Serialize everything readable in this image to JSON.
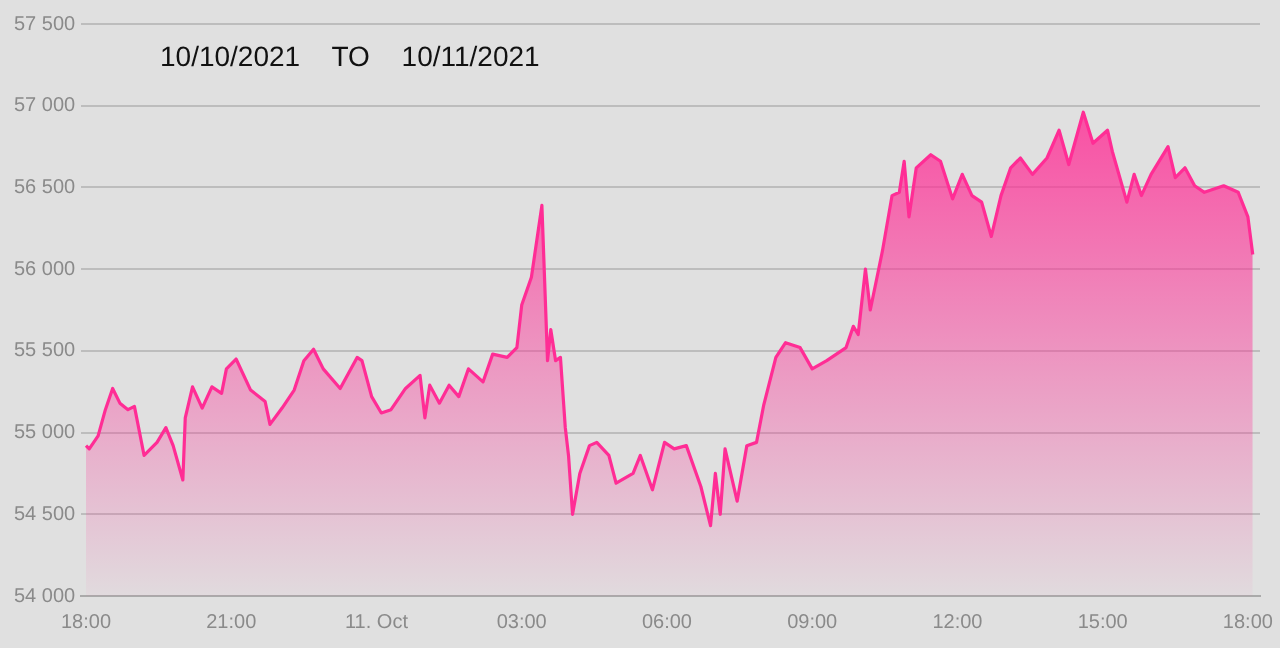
{
  "chart_data": {
    "type": "area",
    "title": "10/10/2021 TO 10/11/2021",
    "x": [
      "2021-10-10T18:00",
      "2021-10-10T18:04",
      "2021-10-10T18:15",
      "2021-10-10T18:24",
      "2021-10-10T18:33",
      "2021-10-10T18:42",
      "2021-10-10T18:52",
      "2021-10-10T19:00",
      "2021-10-10T19:12",
      "2021-10-10T19:28",
      "2021-10-10T19:39",
      "2021-10-10T19:48",
      "2021-10-10T20:00",
      "2021-10-10T20:03",
      "2021-10-10T20:12",
      "2021-10-10T20:24",
      "2021-10-10T20:36",
      "2021-10-10T20:48",
      "2021-10-10T20:54",
      "2021-10-10T21:06",
      "2021-10-10T21:24",
      "2021-10-10T21:42",
      "2021-10-10T21:48",
      "2021-10-10T22:03",
      "2021-10-10T22:18",
      "2021-10-10T22:30",
      "2021-10-10T22:42",
      "2021-10-10T22:54",
      "2021-10-10T23:15",
      "2021-10-10T23:36",
      "2021-10-10T23:42",
      "2021-10-10T23:54",
      "2021-10-11T00:06",
      "2021-10-11T00:18",
      "2021-10-11T00:36",
      "2021-10-11T00:54",
      "2021-10-11T01:00",
      "2021-10-11T01:06",
      "2021-10-11T01:18",
      "2021-10-11T01:30",
      "2021-10-11T01:42",
      "2021-10-11T01:54",
      "2021-10-11T02:12",
      "2021-10-11T02:24",
      "2021-10-11T02:42",
      "2021-10-11T02:54",
      "2021-10-11T03:00",
      "2021-10-11T03:12",
      "2021-10-11T03:25",
      "2021-10-11T03:32",
      "2021-10-11T03:36",
      "2021-10-11T03:42",
      "2021-10-11T03:48",
      "2021-10-11T03:54",
      "2021-10-11T03:58",
      "2021-10-11T04:03",
      "2021-10-11T04:12",
      "2021-10-11T04:24",
      "2021-10-11T04:33",
      "2021-10-11T04:48",
      "2021-10-11T04:57",
      "2021-10-11T05:18",
      "2021-10-11T05:27",
      "2021-10-11T05:42",
      "2021-10-11T05:57",
      "2021-10-11T06:09",
      "2021-10-11T06:24",
      "2021-10-11T06:42",
      "2021-10-11T06:54",
      "2021-10-11T07:00",
      "2021-10-11T07:06",
      "2021-10-11T07:12",
      "2021-10-11T07:27",
      "2021-10-11T07:39",
      "2021-10-11T07:51",
      "2021-10-11T08:00",
      "2021-10-11T08:15",
      "2021-10-11T08:27",
      "2021-10-11T08:45",
      "2021-10-11T09:00",
      "2021-10-11T09:18",
      "2021-10-11T09:42",
      "2021-10-11T09:51",
      "2021-10-11T09:57",
      "2021-10-11T10:06",
      "2021-10-11T10:12",
      "2021-10-11T10:27",
      "2021-10-11T10:39",
      "2021-10-11T10:48",
      "2021-10-11T10:54",
      "2021-10-11T11:00",
      "2021-10-11T11:09",
      "2021-10-11T11:27",
      "2021-10-11T11:39",
      "2021-10-11T11:54",
      "2021-10-11T12:06",
      "2021-10-11T12:18",
      "2021-10-11T12:30",
      "2021-10-11T12:42",
      "2021-10-11T12:54",
      "2021-10-11T13:06",
      "2021-10-11T13:18",
      "2021-10-11T13:33",
      "2021-10-11T13:51",
      "2021-10-11T14:06",
      "2021-10-11T14:18",
      "2021-10-11T14:36",
      "2021-10-11T14:48",
      "2021-10-11T15:06",
      "2021-10-11T15:12",
      "2021-10-11T15:30",
      "2021-10-11T15:39",
      "2021-10-11T15:48",
      "2021-10-11T16:00",
      "2021-10-11T16:21",
      "2021-10-11T16:30",
      "2021-10-11T16:42",
      "2021-10-11T16:54",
      "2021-10-11T17:06",
      "2021-10-11T17:30",
      "2021-10-11T17:48",
      "2021-10-11T18:00",
      "2021-10-11T18:06"
    ],
    "series": [
      {
        "color": "#ff2d95",
        "values": [
          54920,
          54900,
          54980,
          55140,
          55270,
          55180,
          55140,
          55160,
          54860,
          54940,
          55030,
          54920,
          54710,
          55090,
          55280,
          55150,
          55280,
          55240,
          55390,
          55450,
          55260,
          55190,
          55050,
          55150,
          55260,
          55440,
          55510,
          55390,
          55270,
          55460,
          55440,
          55220,
          55120,
          55140,
          55270,
          55350,
          55090,
          55290,
          55180,
          55290,
          55220,
          55390,
          55310,
          55480,
          55460,
          55520,
          55780,
          55950,
          56390,
          55440,
          55630,
          55440,
          55460,
          55030,
          54860,
          54500,
          54750,
          54920,
          54940,
          54860,
          54690,
          54750,
          54860,
          54650,
          54940,
          54900,
          54920,
          54670,
          54430,
          54750,
          54500,
          54900,
          54580,
          54920,
          54940,
          55170,
          55460,
          55550,
          55520,
          55390,
          55440,
          55520,
          55650,
          55600,
          56000,
          55750,
          56110,
          56450,
          56470,
          56660,
          56320,
          56620,
          56700,
          56660,
          56430,
          56580,
          56450,
          56410,
          56200,
          56450,
          56620,
          56680,
          56580,
          56680,
          56850,
          56640,
          56960,
          56770,
          56850,
          56720,
          56410,
          56580,
          56450,
          56580,
          56750,
          56560,
          56620,
          56510,
          56470,
          56510,
          56470,
          56320,
          56090
        ]
      }
    ],
    "xlim": [
      "2021-10-10T17:54",
      "2021-10-11T18:15"
    ],
    "xticks": [
      {
        "value": "2021-10-10T18:00",
        "label": "18:00"
      },
      {
        "value": "2021-10-10T21:00",
        "label": "21:00"
      },
      {
        "value": "2021-10-11T00:00",
        "label": "11. Oct"
      },
      {
        "value": "2021-10-11T03:00",
        "label": "03:00"
      },
      {
        "value": "2021-10-11T06:00",
        "label": "06:00"
      },
      {
        "value": "2021-10-11T09:00",
        "label": "09:00"
      },
      {
        "value": "2021-10-11T12:00",
        "label": "12:00"
      },
      {
        "value": "2021-10-11T15:00",
        "label": "15:00"
      },
      {
        "value": "2021-10-11T18:00",
        "label": "18:00"
      }
    ],
    "ylim": [
      54000,
      57500
    ],
    "yticks": [
      {
        "value": 54000,
        "label": "54 000"
      },
      {
        "value": 54500,
        "label": "54 500"
      },
      {
        "value": 55000,
        "label": "55 000"
      },
      {
        "value": 55500,
        "label": "55 500"
      },
      {
        "value": 56000,
        "label": "56 000"
      },
      {
        "value": 56500,
        "label": "56 500"
      },
      {
        "value": 57000,
        "label": "57 000"
      },
      {
        "value": 57500,
        "label": "57 500"
      }
    ],
    "grid": "y",
    "legend": false,
    "marker": "none",
    "line_style": "solid"
  }
}
